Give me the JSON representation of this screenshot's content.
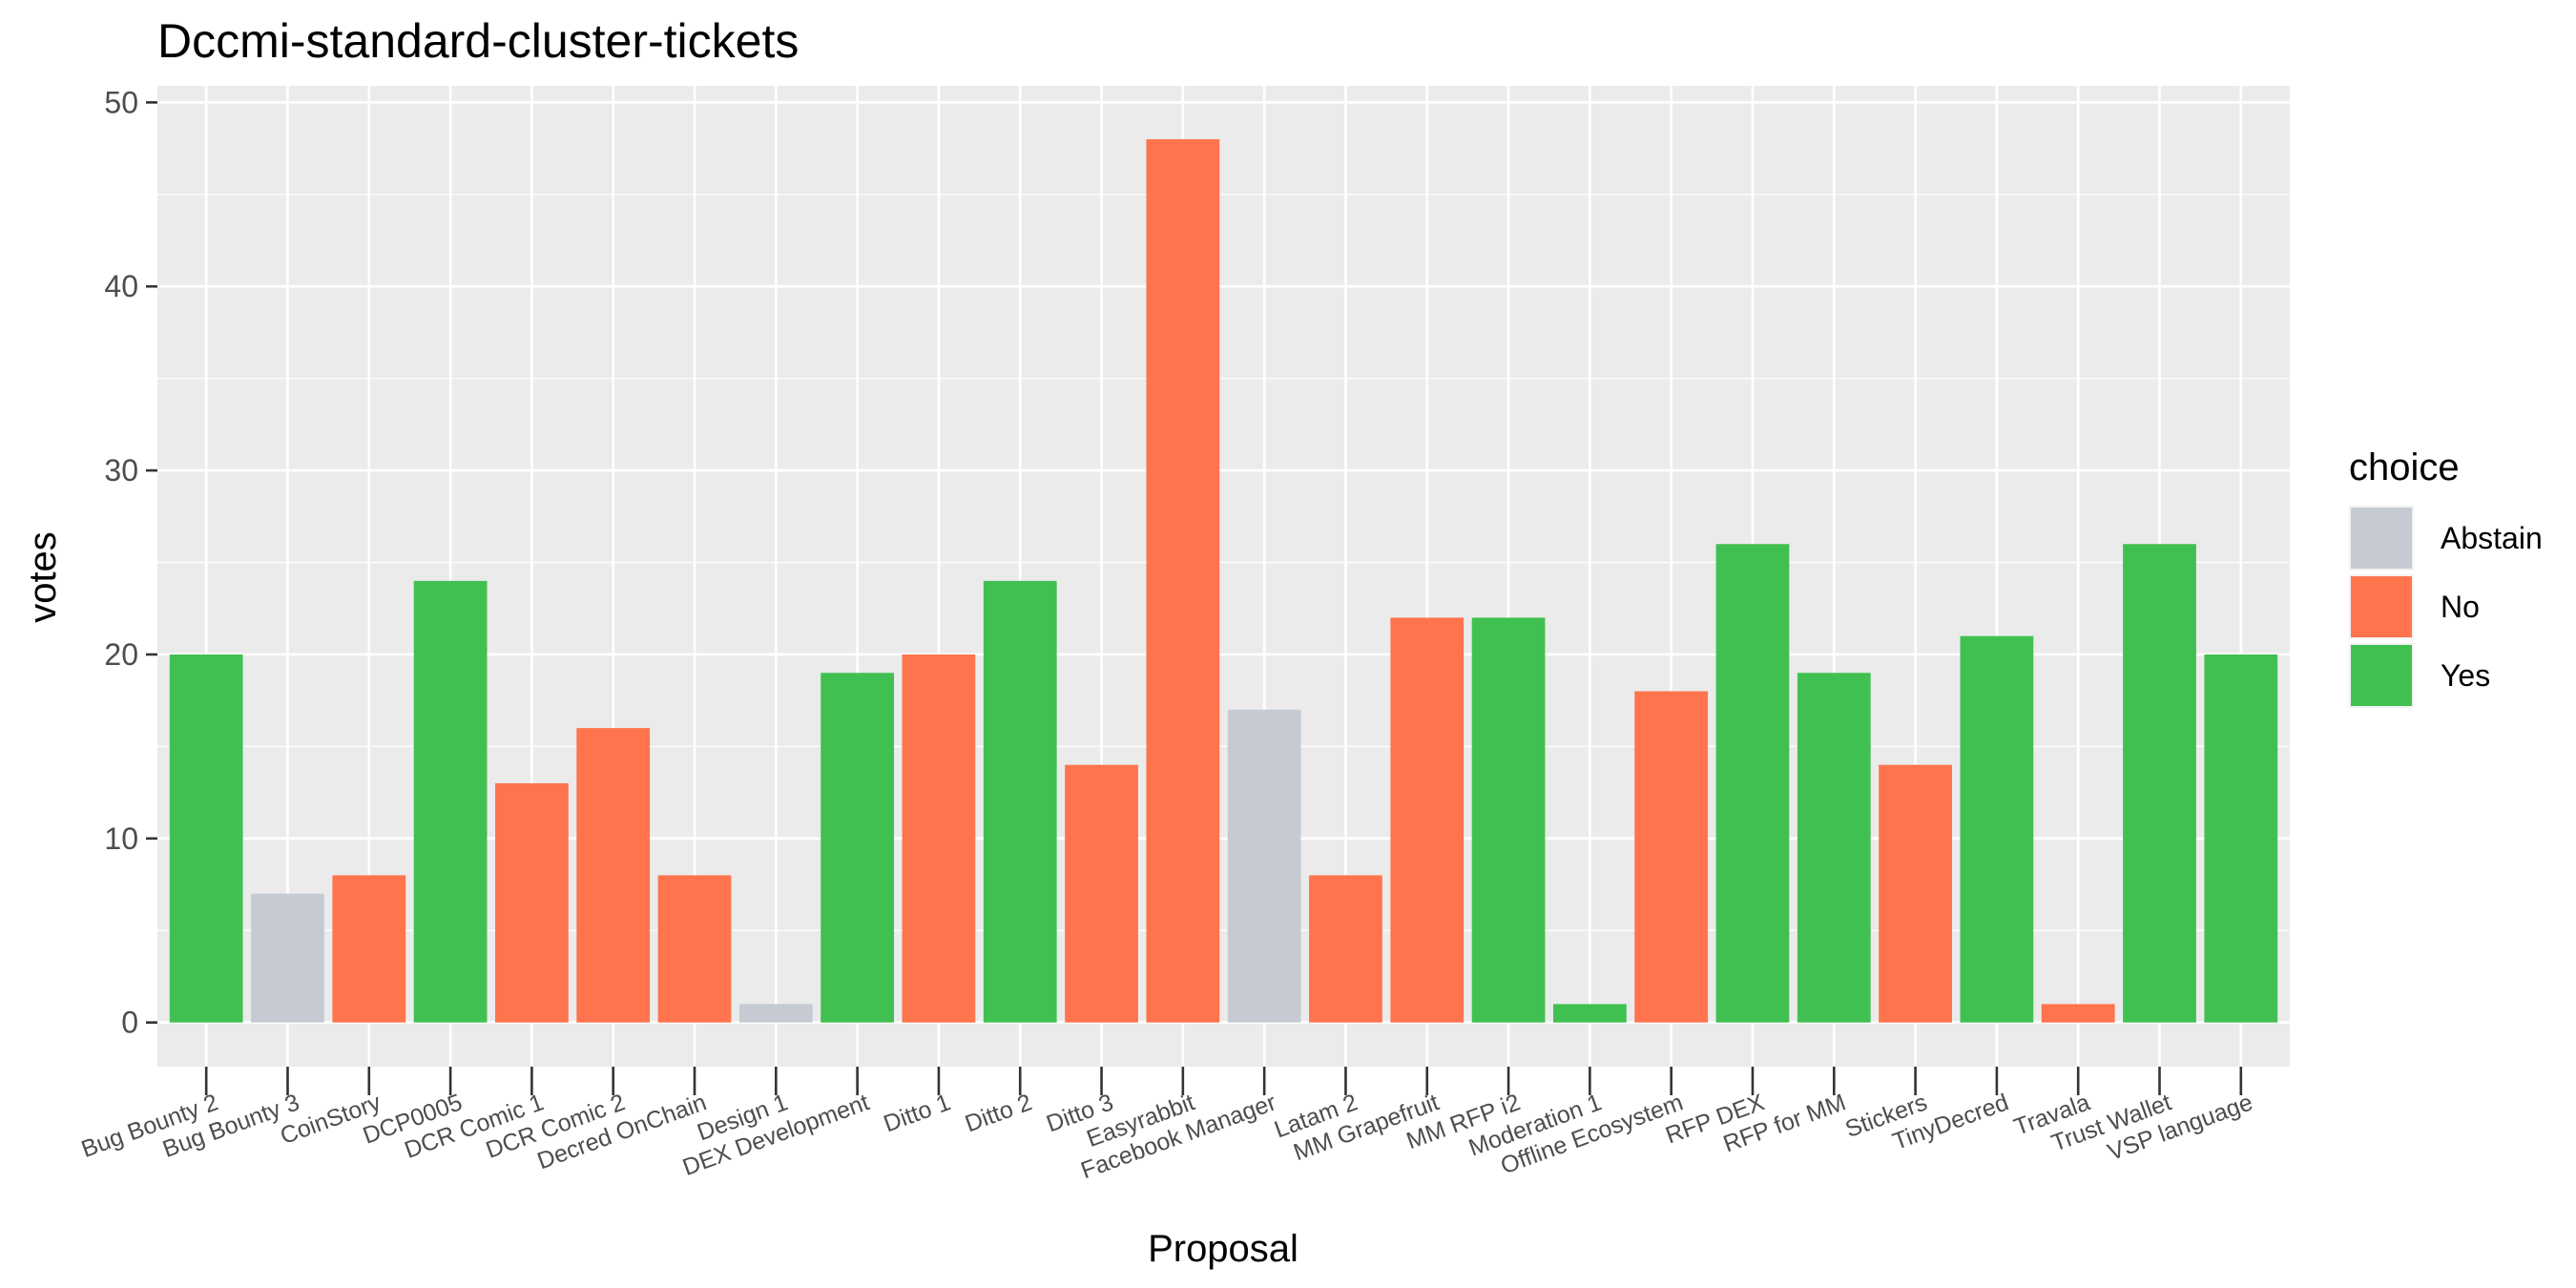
{
  "chart_data": {
    "type": "bar",
    "title": "Dccmi-standard-cluster-tickets",
    "xlabel": "Proposal",
    "ylabel": "votes",
    "ylim": [
      0,
      50
    ],
    "yticks": [
      0,
      10,
      20,
      30,
      40,
      50
    ],
    "grid": true,
    "legend": {
      "title": "choice",
      "placement": "right",
      "entries": [
        {
          "name": "Abstain",
          "color": "#c6cbd3"
        },
        {
          "name": "No",
          "color": "#ff744d"
        },
        {
          "name": "Yes",
          "color": "#41c052"
        }
      ]
    },
    "categories": [
      "Bug Bounty 2",
      "Bug Bounty 3",
      "CoinStory",
      "DCP0005",
      "DCR Comic 1",
      "DCR Comic 2",
      "Decred OnChain",
      "Design 1",
      "DEX Development",
      "Ditto 1",
      "Ditto 2",
      "Ditto 3",
      "Easyrabbit",
      "Facebook Manager",
      "Latam 2",
      "MM Grapefruit",
      "MM RFP i2",
      "Moderation 1",
      "Offline Ecosystem",
      "RFP DEX",
      "RFP for MM",
      "Stickers",
      "TinyDecred",
      "Travala",
      "Trust Wallet",
      "VSP language"
    ],
    "values": [
      20,
      7,
      8,
      24,
      13,
      16,
      8,
      1,
      19,
      20,
      24,
      14,
      48,
      17,
      8,
      22,
      22,
      1,
      18,
      26,
      19,
      14,
      21,
      1,
      26,
      20
    ],
    "choices": [
      "Yes",
      "Abstain",
      "No",
      "Yes",
      "No",
      "No",
      "No",
      "Abstain",
      "Yes",
      "No",
      "Yes",
      "No",
      "No",
      "Abstain",
      "No",
      "No",
      "Yes",
      "Yes",
      "No",
      "Yes",
      "Yes",
      "No",
      "Yes",
      "No",
      "Yes",
      "Yes"
    ]
  }
}
